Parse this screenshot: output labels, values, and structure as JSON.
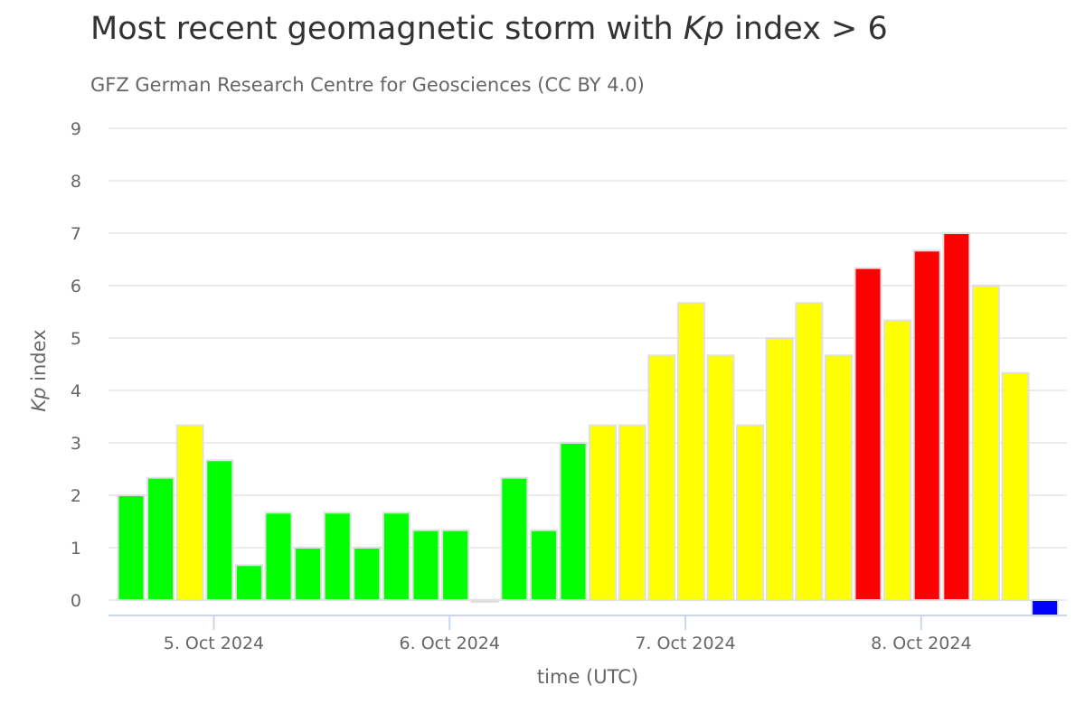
{
  "chart_data": {
    "type": "bar",
    "title_prefix": "Most recent geomagnetic storm with ",
    "title_italic": "Kp",
    "title_suffix": " index > 6",
    "subtitle": "GFZ German Research Centre for Geosciences (CC BY 4.0)",
    "xlabel": "time (UTC)",
    "ylabel_italic": "Kp",
    "ylabel_rest": " index",
    "ylim": [
      0,
      9
    ],
    "yticks": [
      "0",
      "1",
      "2",
      "3",
      "4",
      "5",
      "6",
      "7",
      "8",
      "9"
    ],
    "xticks": [
      {
        "label": "5. Oct 2024",
        "slot": 3.25
      },
      {
        "label": "6. Oct 2024",
        "slot": 11.25
      },
      {
        "label": "7. Oct 2024",
        "slot": 19.25
      },
      {
        "label": "8. Oct 2024",
        "slot": 27.25
      }
    ],
    "grid": true,
    "legend": "none",
    "colors": {
      "quiet": "#00ff00",
      "active": "#ffff00",
      "storm": "#ff0000",
      "missing": "#0000ff",
      "bar_border": "#e0e0e0",
      "grid": "#e6e6e6",
      "axis": "#ccd6eb"
    },
    "values": [
      2.0,
      2.333,
      3.333,
      2.667,
      0.667,
      1.667,
      1.0,
      1.667,
      1.0,
      1.667,
      1.333,
      1.333,
      0.0,
      2.333,
      1.333,
      3.0,
      3.333,
      3.333,
      4.667,
      5.667,
      4.667,
      3.333,
      5.0,
      5.667,
      4.667,
      6.333,
      5.333,
      6.667,
      7.0,
      6.0,
      4.333,
      -0.3
    ],
    "bar_colors": [
      "quiet",
      "quiet",
      "active",
      "quiet",
      "quiet",
      "quiet",
      "quiet",
      "quiet",
      "quiet",
      "quiet",
      "quiet",
      "quiet",
      "quiet",
      "quiet",
      "quiet",
      "quiet",
      "active",
      "active",
      "active",
      "active",
      "active",
      "active",
      "active",
      "active",
      "active",
      "storm",
      "active",
      "storm",
      "storm",
      "active",
      "active",
      "missing"
    ]
  }
}
